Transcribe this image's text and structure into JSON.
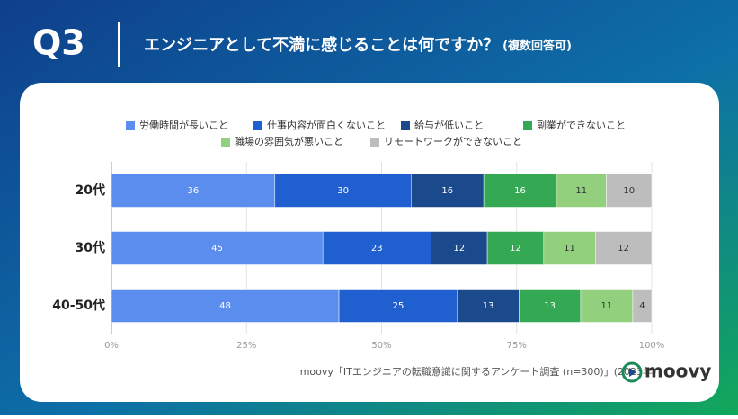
{
  "header": {
    "number": "Q3",
    "question": "エンジニアとして不満に感じることは何ですか？",
    "note": "(複数回答可)"
  },
  "chart_data": {
    "type": "stacked-bar-horizontal",
    "stack": "percent",
    "categories": [
      "20代",
      "30代",
      "40-50代"
    ],
    "series": [
      {
        "name": "労働時間が長いこと",
        "color": "#5b8def",
        "label_color": "#ffffff",
        "values": [
          36,
          45,
          48
        ]
      },
      {
        "name": "仕事内容が面白くないこと",
        "color": "#1f5fcf",
        "label_color": "#ffffff",
        "values": [
          30,
          23,
          25
        ]
      },
      {
        "name": "給与が低いこと",
        "color": "#1a4a8c",
        "label_color": "#ffffff",
        "values": [
          16,
          12,
          13
        ]
      },
      {
        "name": "副業ができないこと",
        "color": "#34a853",
        "label_color": "#ffffff",
        "values": [
          16,
          12,
          13
        ]
      },
      {
        "name": "職場の雰囲気が悪いこと",
        "color": "#93d07e",
        "label_color": "#333333",
        "values": [
          11,
          11,
          11
        ]
      },
      {
        "name": "リモートワークができないこと",
        "color": "#bdbdbd",
        "label_color": "#333333",
        "values": [
          10,
          12,
          4
        ]
      }
    ],
    "xlim": [
      0,
      100
    ],
    "xticks": [
      {
        "value": 0,
        "label": "0%"
      },
      {
        "value": 25,
        "label": "25%"
      },
      {
        "value": 50,
        "label": "50%"
      },
      {
        "value": 75,
        "label": "75%"
      },
      {
        "value": 100,
        "label": "100%"
      }
    ],
    "grid": true
  },
  "footer": {
    "source": "moovy「ITエンジニアの転職意識に関するアンケート調査 (n=300)」(2023年)",
    "logo": "moovy"
  }
}
